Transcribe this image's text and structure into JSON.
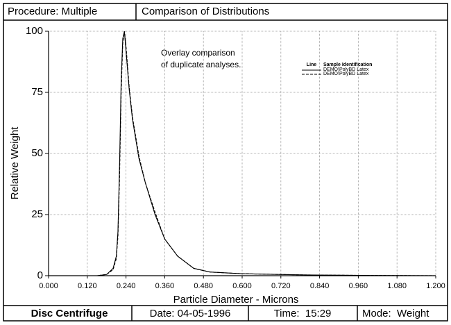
{
  "header": {
    "procedure": "Procedure: Multiple",
    "title": "Comparison of Distributions"
  },
  "footer": {
    "instrument": "Disc Centrifuge",
    "date": "Date: 04-05-1996",
    "time": "Time:  15:29",
    "mode": "Mode:  Weight"
  },
  "chart_data": {
    "type": "line",
    "annotation": [
      "Overlay comparison",
      "of duplicate analyses."
    ],
    "x_label": "Particle Diameter - Microns",
    "y_label": "Relative Weight",
    "legend_headers": [
      "Line",
      "Sample Identification"
    ],
    "legend": "upper right",
    "grid": true,
    "x": [
      0,
      0.15,
      0.18,
      0.2,
      0.21,
      0.215,
      0.22,
      0.225,
      0.23,
      0.235,
      0.24,
      0.25,
      0.26,
      0.28,
      0.3,
      0.33,
      0.36,
      0.4,
      0.45,
      0.5,
      0.6,
      0.8,
      1.0,
      1.2
    ],
    "series": [
      {
        "name": "DEMO\\PolyBD Latex",
        "color": "#000000",
        "line_style": "solid",
        "values": [
          0,
          0,
          0.5,
          3,
          8,
          18,
          45,
          80,
          97,
          100,
          92,
          76,
          64,
          48,
          38,
          25,
          15,
          8,
          3,
          1.5,
          0.8,
          0.3,
          0.1,
          0
        ]
      },
      {
        "name": "DEMO\\PolyBD Latex",
        "color": "#000000",
        "line_style": "dashed",
        "values": [
          0,
          0,
          0.5,
          2.5,
          7,
          16,
          40,
          75,
          95,
          100,
          94,
          77,
          65,
          49,
          38,
          26,
          15,
          8,
          3,
          1.5,
          0.8,
          0.3,
          0.1,
          0
        ]
      }
    ],
    "xlim": [
      0,
      1.2
    ],
    "xticks": [
      {
        "value": 0,
        "label": "0.000"
      },
      {
        "value": 0.12,
        "label": "0.120"
      },
      {
        "value": 0.24,
        "label": "0.240"
      },
      {
        "value": 0.36,
        "label": "0.360"
      },
      {
        "value": 0.48,
        "label": "0.480"
      },
      {
        "value": 0.6,
        "label": "0.600"
      },
      {
        "value": 0.72,
        "label": "0.720"
      },
      {
        "value": 0.84,
        "label": "0.840"
      },
      {
        "value": 0.96,
        "label": "0.960"
      },
      {
        "value": 1.08,
        "label": "1.080"
      },
      {
        "value": 1.2,
        "label": "1.200"
      }
    ],
    "ylim": [
      0,
      100
    ],
    "yticks": [
      0,
      25,
      50,
      75,
      100
    ]
  }
}
